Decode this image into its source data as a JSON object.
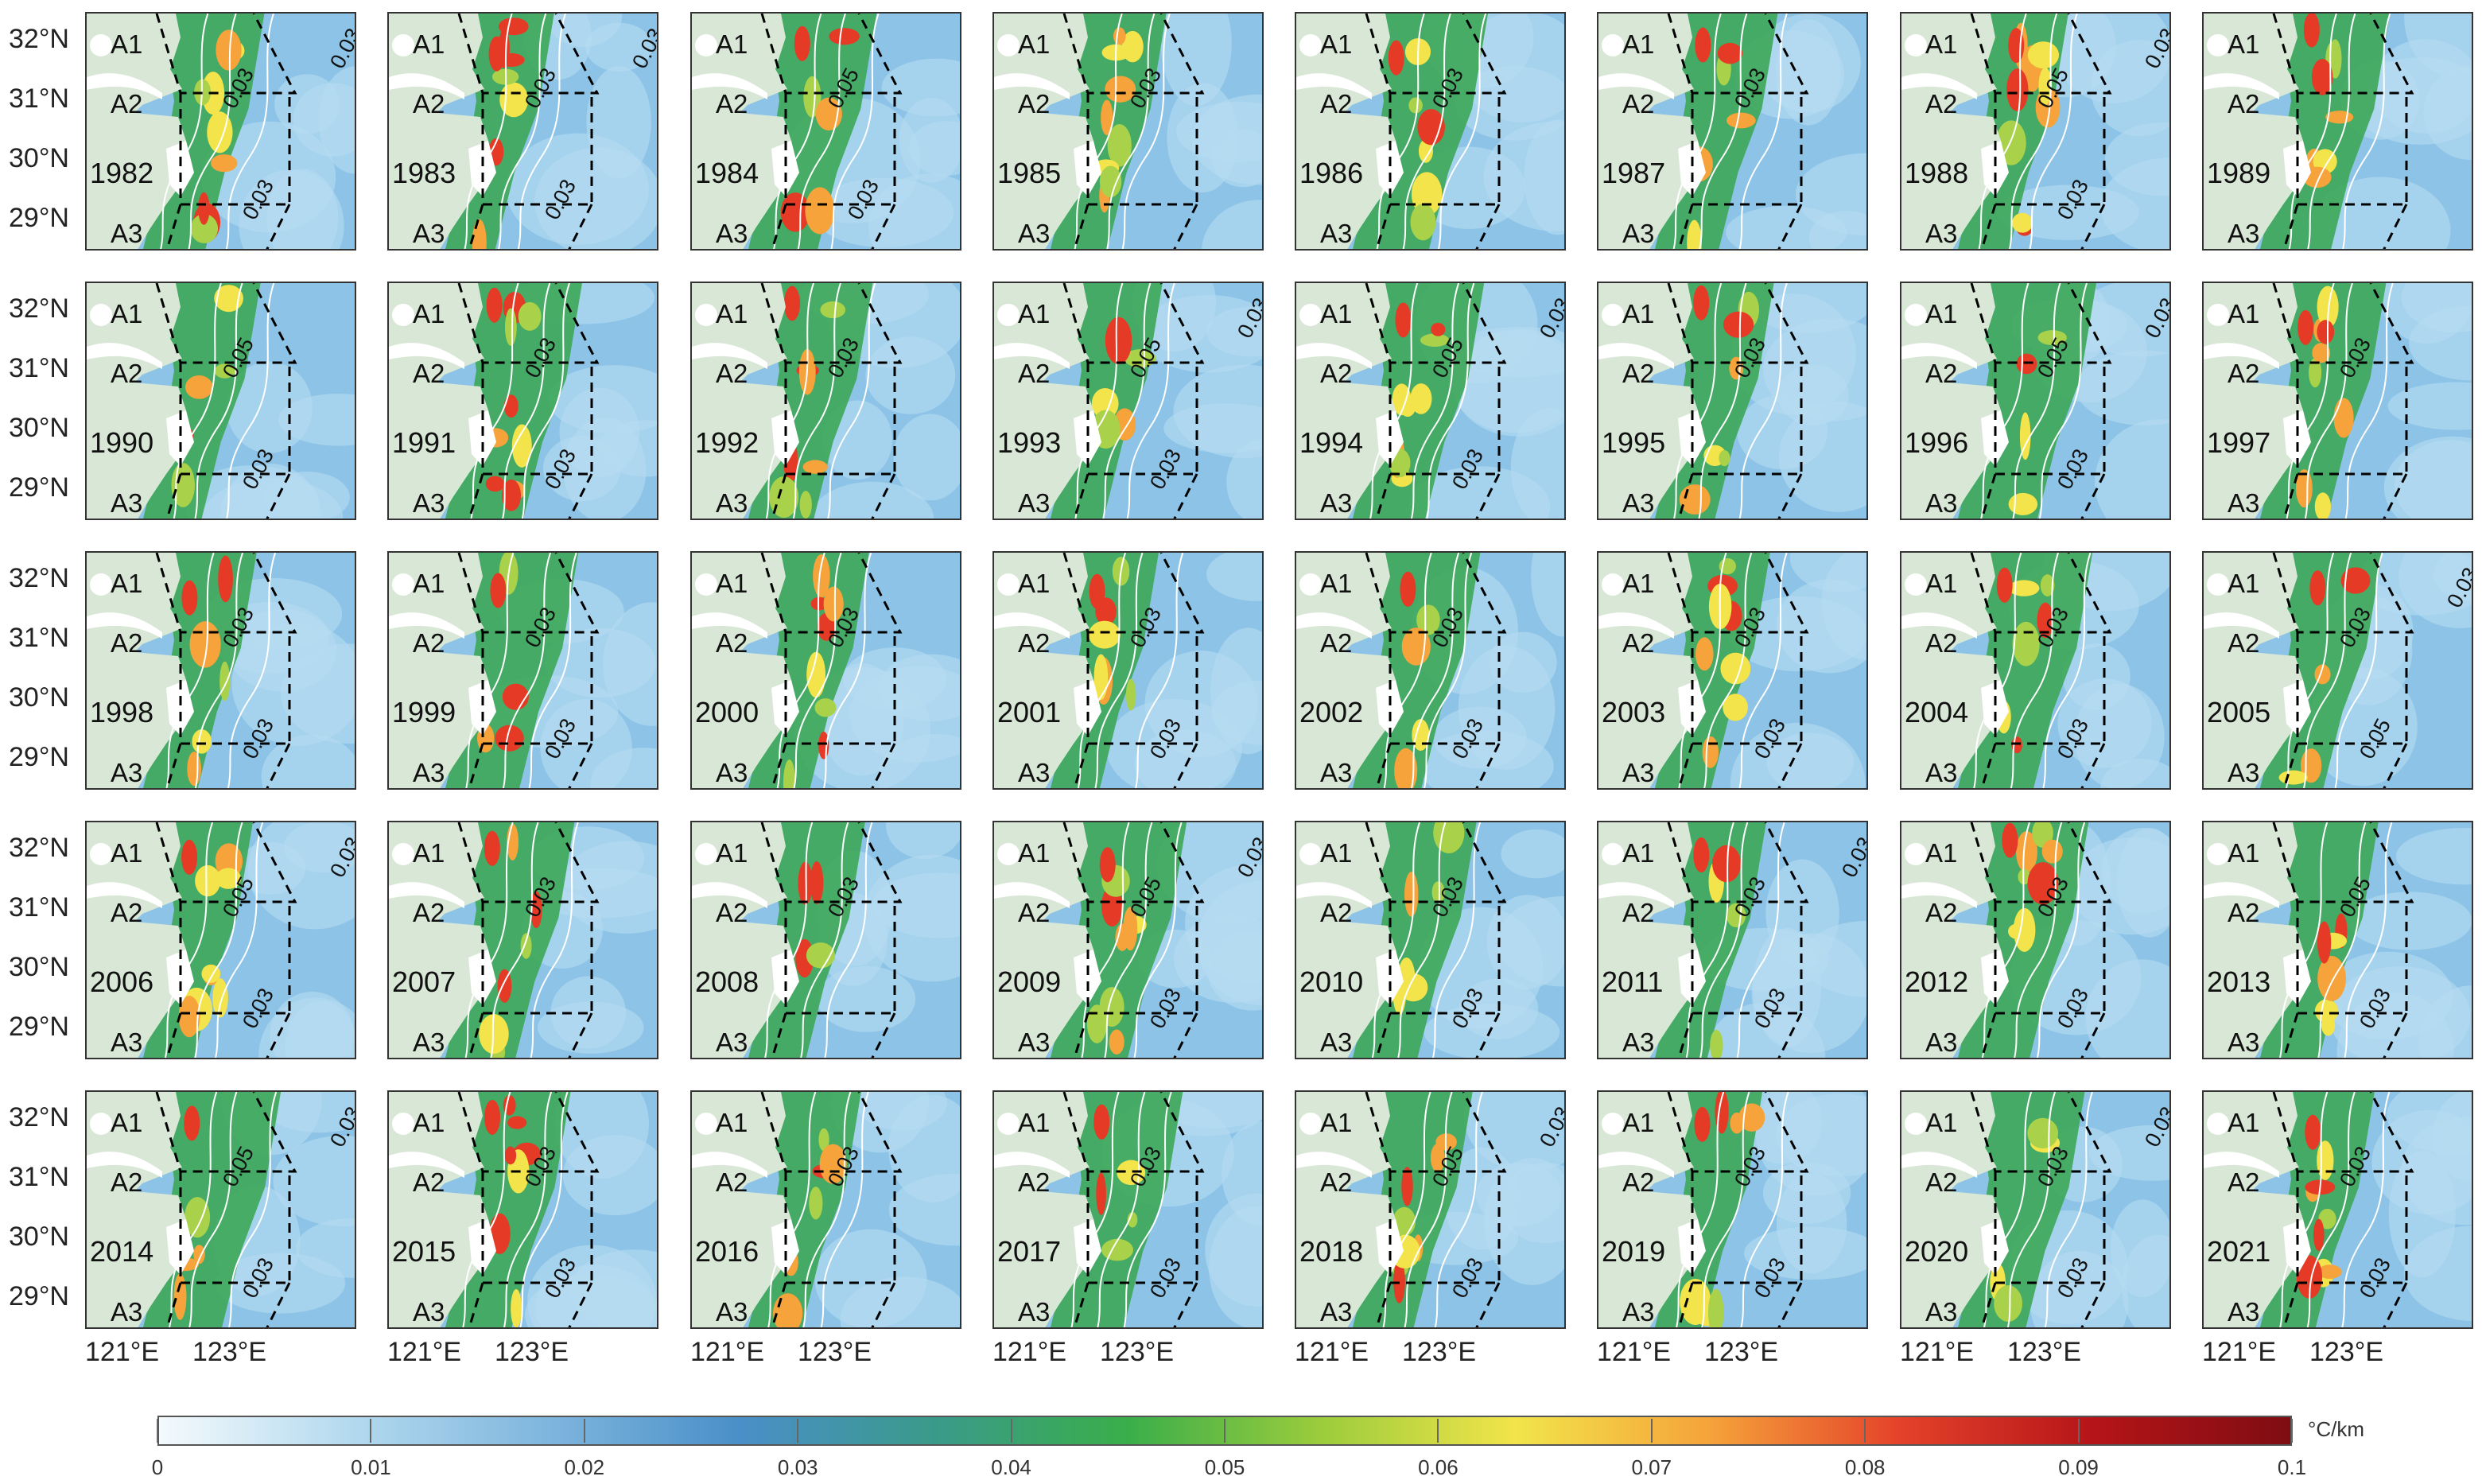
{
  "y_axis_labels": [
    "32°N",
    "31°N",
    "30°N",
    "29°N"
  ],
  "x_axis_labels": [
    "121°E",
    "123°E"
  ],
  "region_labels": [
    "A1",
    "A2",
    "A3"
  ],
  "years": [
    "1982",
    "1983",
    "1984",
    "1985",
    "1986",
    "1987",
    "1988",
    "1989",
    "1990",
    "1991",
    "1992",
    "1993",
    "1994",
    "1995",
    "1996",
    "1997",
    "1998",
    "1999",
    "2000",
    "2001",
    "2002",
    "2003",
    "2004",
    "2005",
    "2006",
    "2007",
    "2008",
    "2009",
    "2010",
    "2011",
    "2012",
    "2013",
    "2014",
    "2015",
    "2016",
    "2017",
    "2018",
    "2019",
    "2020",
    "2021"
  ],
  "contour_labels": {
    "1982": [
      "0.03",
      "0.03",
      "0.03"
    ],
    "1983": [
      "0.03",
      "0.03",
      "0.03"
    ],
    "1984": [
      "0.05",
      "0.03"
    ],
    "1985": [
      "0.03"
    ],
    "1986": [
      "0.03"
    ],
    "1987": [
      "0.03"
    ],
    "1988": [
      "0.05",
      "0.03",
      "0.03"
    ],
    "1989": [],
    "1990": [
      "0.05",
      "0.03"
    ],
    "1991": [
      "0.03",
      "0.03"
    ],
    "1992": [
      "0.03"
    ],
    "1993": [
      "0.05",
      "0.03",
      "0.03"
    ],
    "1994": [
      "0.05",
      "0.03",
      "0.03"
    ],
    "1995": [
      "0.03"
    ],
    "1996": [
      "0.05",
      "0.03",
      "0.03"
    ],
    "1997": [
      "0.03"
    ],
    "1998": [
      "0.03",
      "0.03"
    ],
    "1999": [
      "0.03",
      "0.03"
    ],
    "2000": [
      "0.03"
    ],
    "2001": [
      "0.03",
      "0.03"
    ],
    "2002": [
      "0.03",
      "0.03"
    ],
    "2003": [
      "0.03",
      "0.03"
    ],
    "2004": [
      "0.03",
      "0.03"
    ],
    "2005": [
      "0.03",
      "0.05",
      "0.03"
    ],
    "2006": [
      "0.05",
      "0.03",
      "0.03"
    ],
    "2007": [
      "0.03"
    ],
    "2008": [
      "0.03"
    ],
    "2009": [
      "0.05",
      "0.03",
      "0.03"
    ],
    "2010": [
      "0.03",
      "0.03"
    ],
    "2011": [
      "0.03",
      "0.03",
      "0.03"
    ],
    "2012": [
      "0.03",
      "0.03"
    ],
    "2013": [
      "0.05",
      "0.03"
    ],
    "2014": [
      "0.05",
      "0.03",
      "0.03"
    ],
    "2015": [
      "0.03",
      "0.03"
    ],
    "2016": [
      "0.03"
    ],
    "2017": [
      "0.03",
      "0.03"
    ],
    "2018": [
      "0.05",
      "0.03",
      "0.03"
    ],
    "2019": [
      "0.03",
      "0.03"
    ],
    "2020": [
      "0.03",
      "0.03",
      "0.03"
    ],
    "2021": [
      "0.03",
      "0.03"
    ]
  },
  "colorbar": {
    "unit": "°C/km",
    "ticks": [
      "0",
      "0.01",
      "0.02",
      "0.03",
      "0.04",
      "0.05",
      "0.06",
      "0.07",
      "0.08",
      "0.09",
      "0.1"
    ],
    "colors": [
      "#f4fafd",
      "#b3d9ee",
      "#7fb6de",
      "#4a8fc8",
      "#3a9a8a",
      "#3aae4a",
      "#9ccc3c",
      "#f2e44a",
      "#f5a33a",
      "#e4412a",
      "#b41418",
      "#7e0d12"
    ]
  },
  "colors": {
    "land": "#d9e8d6",
    "sea": "#8dc3e6",
    "high_gradient": "#e53a25",
    "contour": "#ffffff",
    "box": "#000000"
  }
}
